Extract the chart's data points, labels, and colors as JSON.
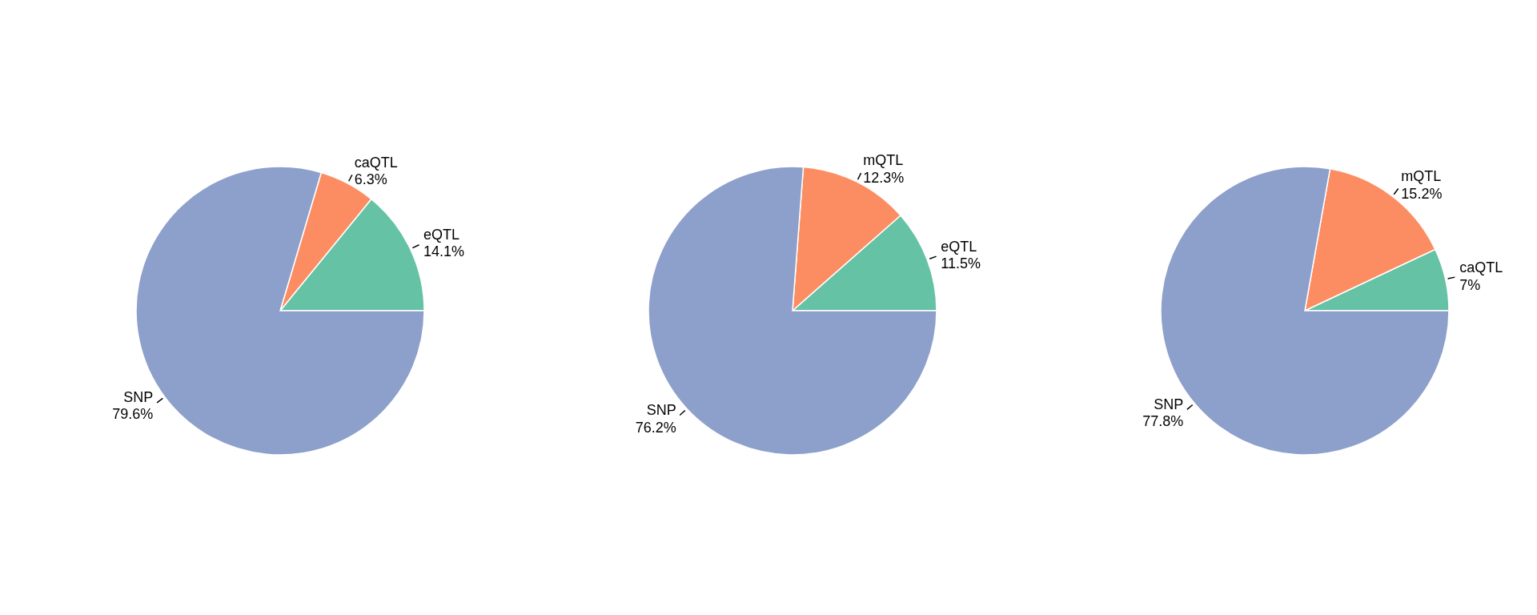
{
  "chart_data": [
    {
      "type": "pie",
      "categories": [
        "eQTL",
        "caQTL",
        "SNP"
      ],
      "values": [
        14.1,
        6.3,
        79.6
      ],
      "colors": [
        "#66c2a5",
        "#fc8d62",
        "#8da0cb"
      ],
      "value_labels": [
        "14.1%",
        "6.3%",
        "79.6%"
      ]
    },
    {
      "type": "pie",
      "categories": [
        "eQTL",
        "mQTL",
        "SNP"
      ],
      "values": [
        11.5,
        12.3,
        76.2
      ],
      "colors": [
        "#66c2a5",
        "#fc8d62",
        "#8da0cb"
      ],
      "value_labels": [
        "11.5%",
        "12.3%",
        "76.2%"
      ]
    },
    {
      "type": "pie",
      "categories": [
        "caQTL",
        "mQTL",
        "SNP"
      ],
      "values": [
        7,
        15.2,
        77.8
      ],
      "colors": [
        "#66c2a5",
        "#fc8d62",
        "#8da0cb"
      ],
      "value_labels": [
        "7%",
        "15.2%",
        "77.8%"
      ]
    }
  ]
}
